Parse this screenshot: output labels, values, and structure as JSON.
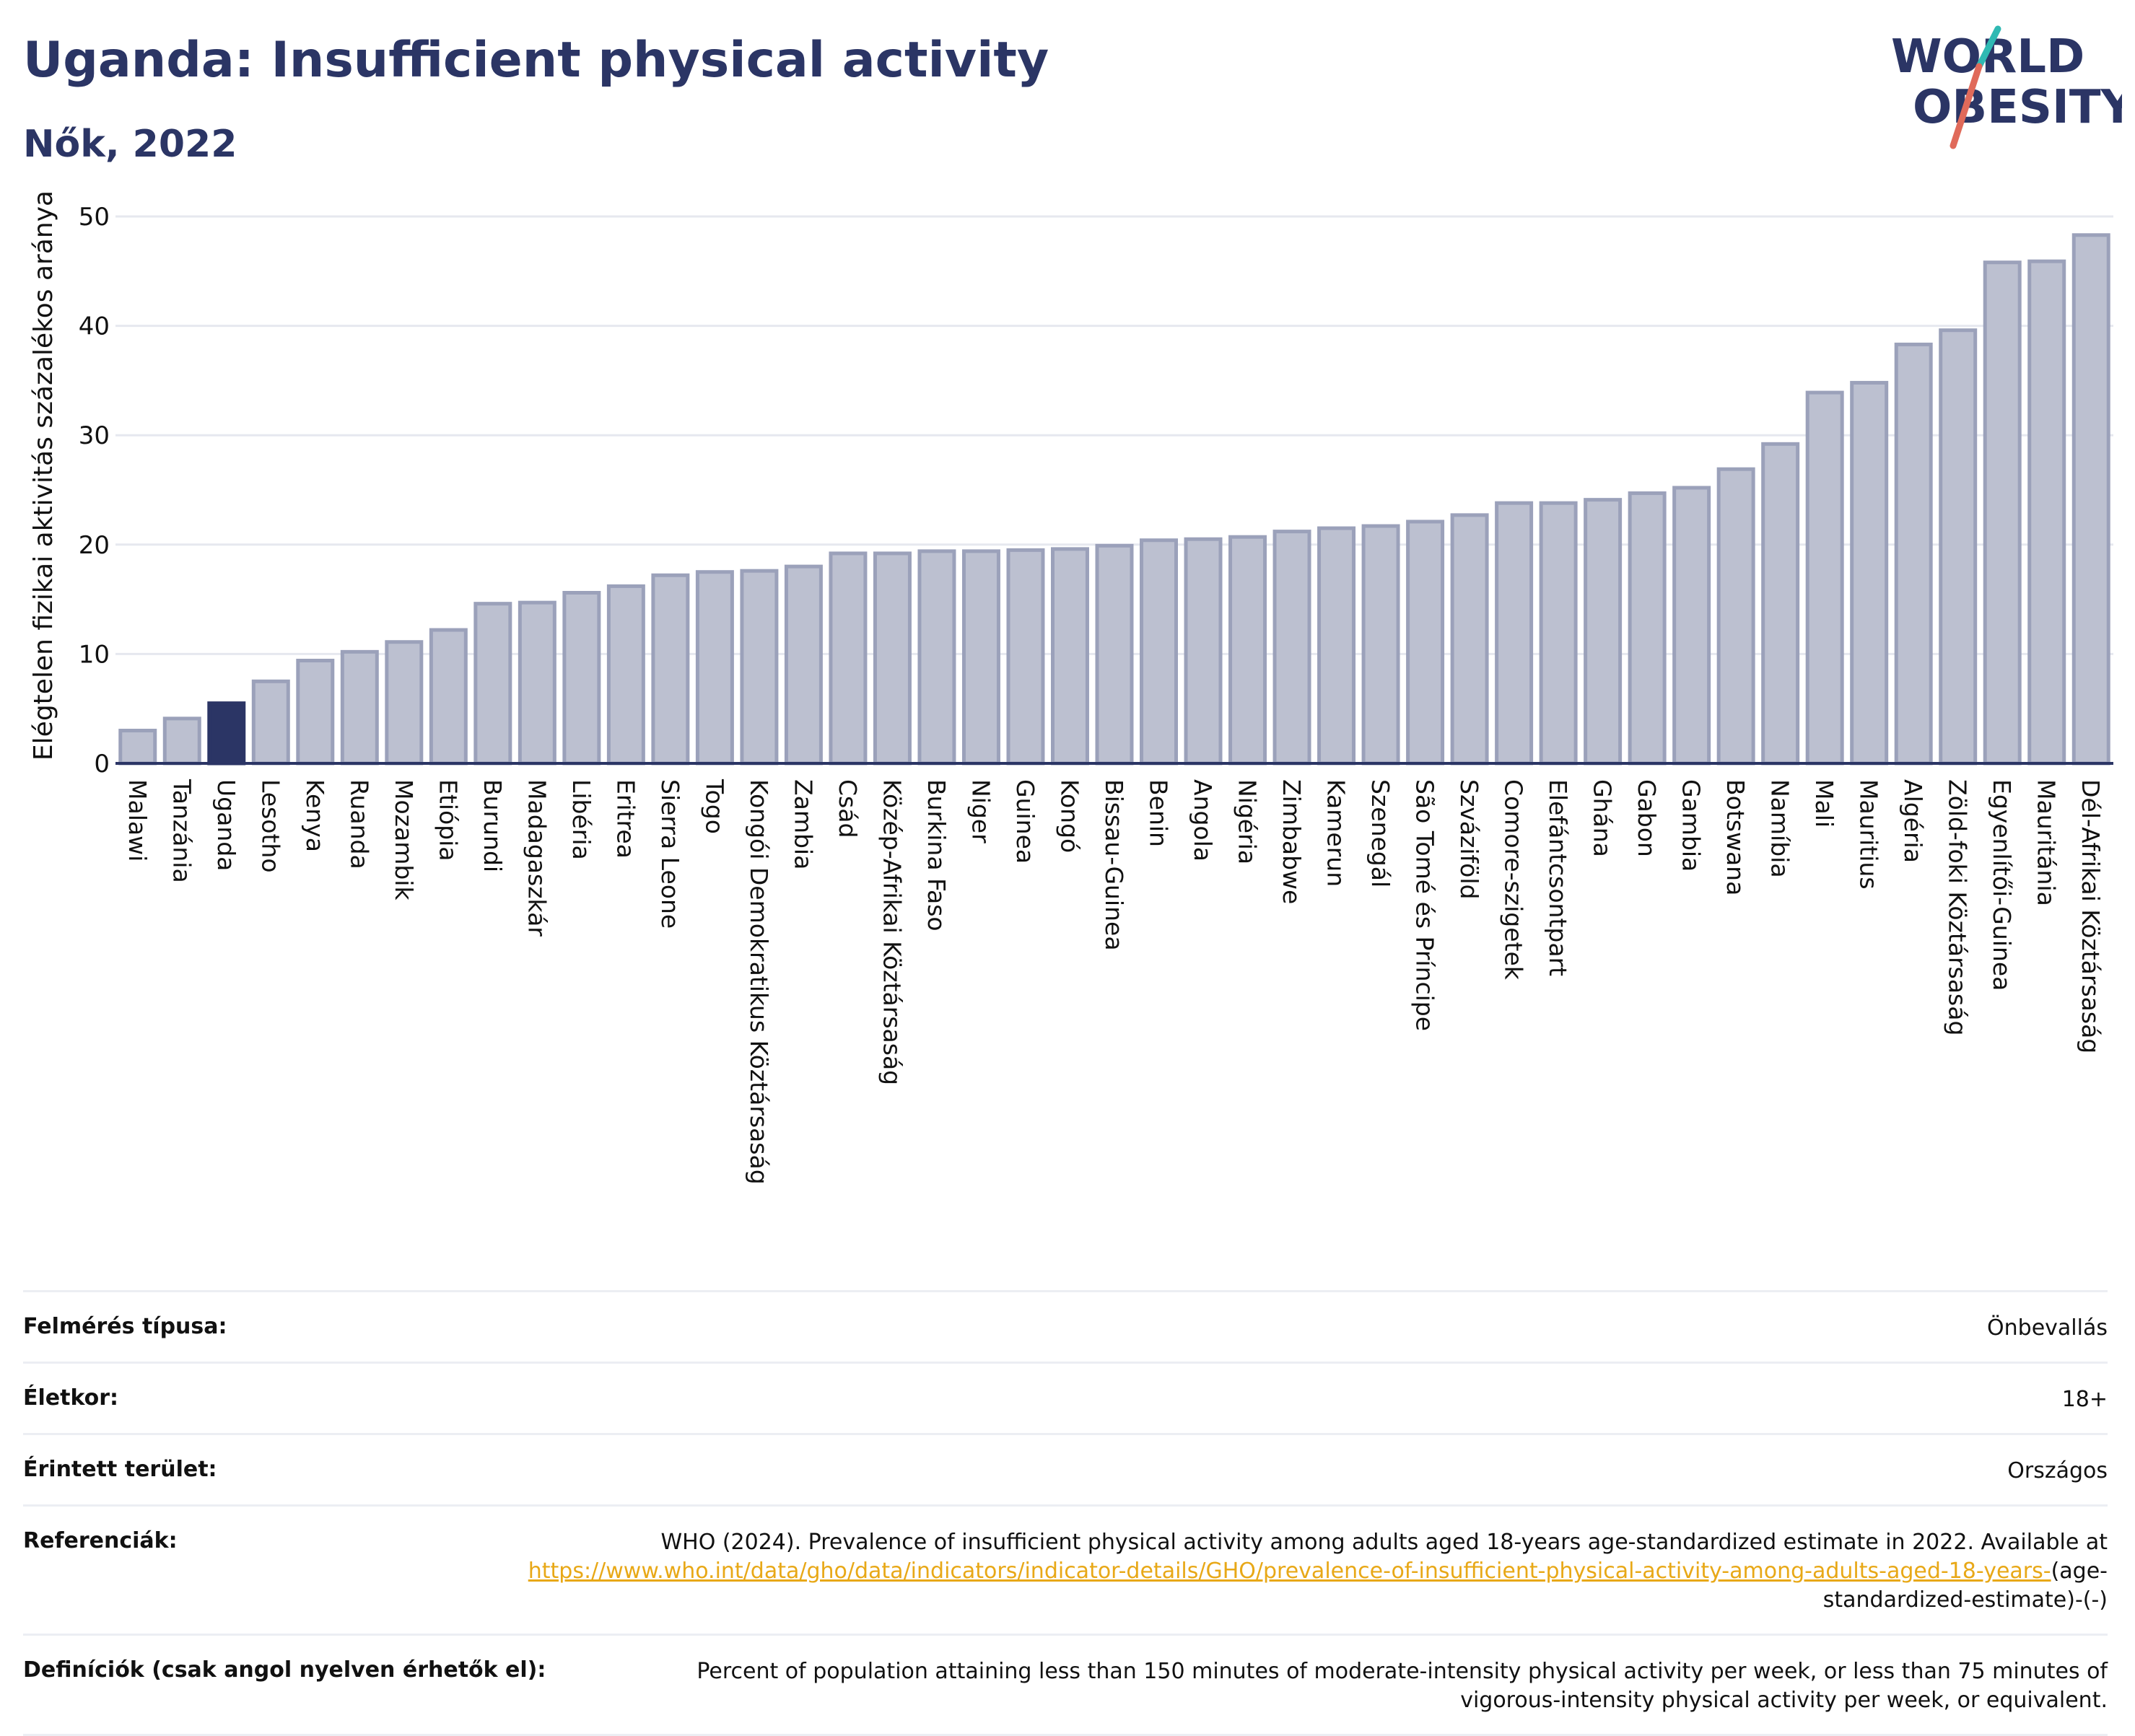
{
  "header": {
    "title": "Uganda: Insufficient physical activity",
    "subtitle": "Nők, 2022"
  },
  "logo": {
    "line1": "WORLD",
    "line2": "OBESITY",
    "text_color": "#2b3565",
    "slash_colors": [
      "#e06a5a",
      "#2fb9b3"
    ]
  },
  "colors": {
    "bar_fill": "#bcc0d0",
    "bar_stroke": "#9ba1ba",
    "highlight": "#2b3565",
    "grid": "#e6e8ef",
    "link": "#e8a817"
  },
  "chart_data": {
    "type": "bar",
    "ylabel": "Elégtelen fizikai aktivitás százalékos aránya",
    "ylim": [
      0,
      50
    ],
    "yticks": [
      0,
      10,
      20,
      30,
      40,
      50
    ],
    "grid": true,
    "highlight": "Uganda",
    "categories": [
      "Malawi",
      "Tanzánia",
      "Uganda",
      "Lesotho",
      "Kenya",
      "Ruanda",
      "Mozambik",
      "Etiópia",
      "Burundi",
      "Madagaszkár",
      "Libéria",
      "Eritrea",
      "Sierra Leone",
      "Togo",
      "Kongói Demokratikus Köztársaság",
      "Zambia",
      "Csád",
      "Közép-Afrikai Köztársaság",
      "Burkina Faso",
      "Niger",
      "Guinea",
      "Kongó",
      "Bissau-Guinea",
      "Benin",
      "Angola",
      "Nigéria",
      "Zimbabwe",
      "Kamerun",
      "Szenegál",
      "São Tomé és Príncipe",
      "Szváziföld",
      "Comore-szigetek",
      "Elefántcsontpart",
      "Ghána",
      "Gabon",
      "Gambia",
      "Botswana",
      "Namíbia",
      "Mali",
      "Mauritius",
      "Algéria",
      "Zöld-foki Köztársaság",
      "Egyenlítői-Guinea",
      "Mauritánia",
      "Dél-Afrikai Köztársaság"
    ],
    "values": [
      3.0,
      4.1,
      5.5,
      7.5,
      9.4,
      10.2,
      11.1,
      12.2,
      14.6,
      14.7,
      15.6,
      16.2,
      17.2,
      17.5,
      17.6,
      18.0,
      19.2,
      19.2,
      19.4,
      19.4,
      19.5,
      19.6,
      19.9,
      20.4,
      20.5,
      20.7,
      21.2,
      21.5,
      21.7,
      22.1,
      22.7,
      23.8,
      23.8,
      24.1,
      24.7,
      25.2,
      26.9,
      29.2,
      33.9,
      34.8,
      38.3,
      39.6,
      45.8,
      45.9,
      48.3
    ]
  },
  "info": [
    {
      "label": "Felmérés típusa:",
      "value": "Önbevallás"
    },
    {
      "label": "Életkor:",
      "value": "18+"
    },
    {
      "label": "Érintett terület:",
      "value": "Országos"
    },
    {
      "label": "Referenciák:",
      "value_before": "WHO (2024). Prevalence of insufficient physical activity among adults aged 18-years age-standardized estimate in 2022. Available at",
      "link": "https://www.who.int/data/gho/data/indicators/indicator-details/GHO/prevalence-of-insufficient-physical-activity-among-adults-aged-18-years-",
      "value_after": "(age-standardized-estimate)-(-)"
    },
    {
      "label": "Definíciók (csak angol nyelven érhetők el):",
      "value": "Percent of population attaining less than 150 minutes of moderate-intensity physical activity per week, or less than 75 minutes of vigorous-intensity physical activity per week, or equivalent."
    }
  ]
}
